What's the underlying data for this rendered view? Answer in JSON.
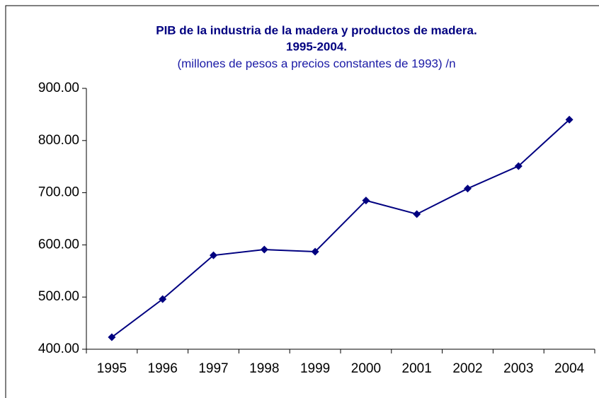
{
  "chart_data": {
    "type": "line",
    "title": [
      "PIB de la industria de la madera y productos de madera.",
      "1995-2004."
    ],
    "subtitle": "(millones de pesos a precios constantes de 1993) /n",
    "categories": [
      "1995",
      "1996",
      "1997",
      "1998",
      "1999",
      "2000",
      "2001",
      "2002",
      "2003",
      "2004"
    ],
    "values": [
      423,
      496,
      580,
      591,
      587,
      685,
      659,
      708,
      751,
      840
    ],
    "color": "#000080",
    "ylim": [
      400,
      900
    ],
    "yticks": [
      {
        "value": 400,
        "label": "400.00"
      },
      {
        "value": 500,
        "label": "500.00"
      },
      {
        "value": 600,
        "label": "600.00"
      },
      {
        "value": 700,
        "label": "700.00"
      },
      {
        "value": 800,
        "label": "800.00"
      },
      {
        "value": 900,
        "label": "900.00"
      }
    ],
    "grid": false
  }
}
